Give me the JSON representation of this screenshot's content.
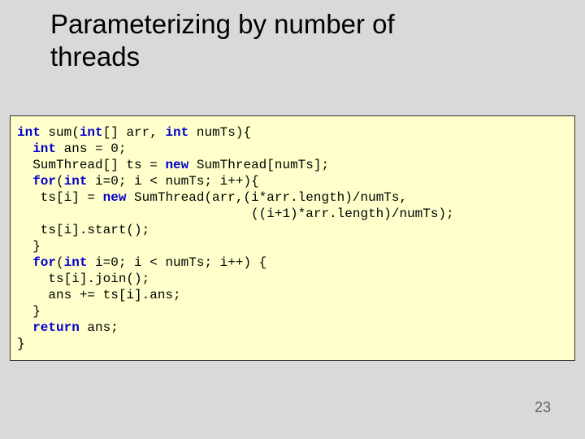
{
  "slide": {
    "title_line1": "Parameterizing by number of",
    "title_line2": "threads",
    "page_number": "23",
    "title_color": "#000000",
    "title_fontsize": 33,
    "background_color": "#d9d9d9"
  },
  "code": {
    "background_color": "#ffffcc",
    "border_color": "#333333",
    "font_family": "Courier New",
    "font_size": 16,
    "keyword_color": "#0000cc",
    "text_color": "#000000",
    "tokens": [
      {
        "t": "int",
        "kw": true
      },
      {
        "t": " sum(",
        "kw": false
      },
      {
        "t": "int",
        "kw": true
      },
      {
        "t": "[] arr, ",
        "kw": false
      },
      {
        "t": "int",
        "kw": true
      },
      {
        "t": " numTs){\n",
        "kw": false
      },
      {
        "t": "  ",
        "kw": false
      },
      {
        "t": "int",
        "kw": true
      },
      {
        "t": " ans = 0;\n",
        "kw": false
      },
      {
        "t": "  SumThread[] ts = ",
        "kw": false
      },
      {
        "t": "new",
        "kw": true
      },
      {
        "t": " SumThread[numTs];\n",
        "kw": false
      },
      {
        "t": "  ",
        "kw": false
      },
      {
        "t": "for",
        "kw": true
      },
      {
        "t": "(",
        "kw": false
      },
      {
        "t": "int",
        "kw": true
      },
      {
        "t": " i=0; i < numTs; i++){\n",
        "kw": false
      },
      {
        "t": "   ts[i] = ",
        "kw": false
      },
      {
        "t": "new",
        "kw": true
      },
      {
        "t": " SumThread(arr,(i*arr.length)/numTs,\n",
        "kw": false
      },
      {
        "t": "                              ((i+1)*arr.length)/numTs);\n",
        "kw": false
      },
      {
        "t": "   ts[i].start();\n",
        "kw": false
      },
      {
        "t": "  }\n",
        "kw": false
      },
      {
        "t": "  ",
        "kw": false
      },
      {
        "t": "for",
        "kw": true
      },
      {
        "t": "(",
        "kw": false
      },
      {
        "t": "int",
        "kw": true
      },
      {
        "t": " i=0; i < numTs; i++) {\n",
        "kw": false
      },
      {
        "t": "    ts[i].join();\n",
        "kw": false
      },
      {
        "t": "    ans += ts[i].ans;\n",
        "kw": false
      },
      {
        "t": "  }\n",
        "kw": false
      },
      {
        "t": "  ",
        "kw": false
      },
      {
        "t": "return",
        "kw": true
      },
      {
        "t": " ans;\n",
        "kw": false
      },
      {
        "t": "}",
        "kw": false
      }
    ]
  }
}
